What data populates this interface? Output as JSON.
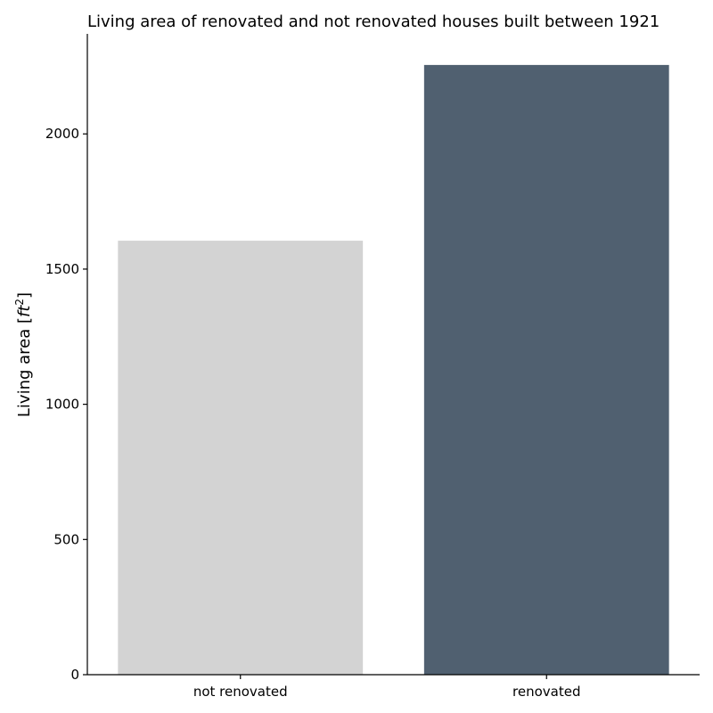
{
  "chart_data": {
    "type": "bar",
    "title": "Living area of renovated and not renovated houses built between 1921",
    "xlabel": "",
    "ylabel_text": "Living area [",
    "ylabel_unit_base": "ft",
    "ylabel_unit_exp": "2",
    "ylabel_close": "]",
    "categories": [
      "not renovated",
      "renovated"
    ],
    "values": [
      1605,
      2255
    ],
    "colors": [
      "#d3d3d3",
      "#506070"
    ],
    "ylim": [
      0,
      2370
    ],
    "yticks": [
      0,
      500,
      1000,
      1500,
      2000
    ],
    "ytick_labels": [
      "0",
      "500",
      "1000",
      "1500",
      "2000"
    ],
    "grid": false,
    "legend": "none"
  }
}
